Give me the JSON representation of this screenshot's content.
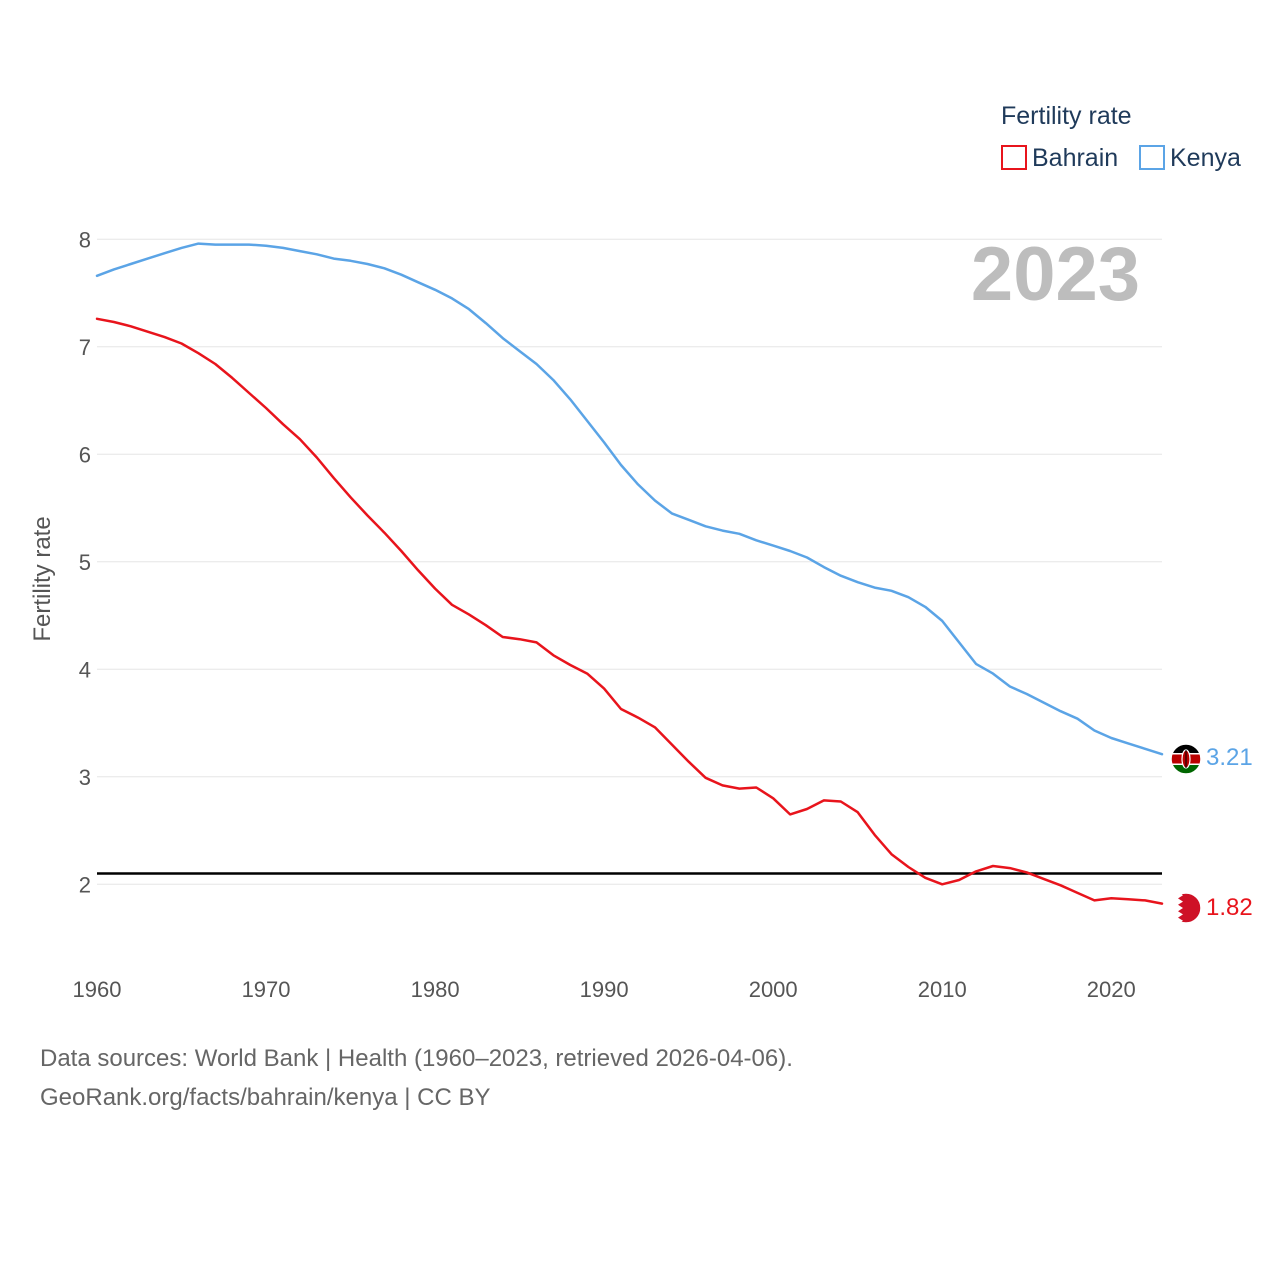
{
  "chart_data": {
    "type": "line",
    "title": "",
    "year_label": "2023",
    "ylabel": "Fertility rate",
    "xlabel": "",
    "xlim": [
      1960,
      2023
    ],
    "ylim": [
      1.5,
      8.3
    ],
    "x_ticks": [
      1960,
      1970,
      1980,
      1990,
      2000,
      2010,
      2020
    ],
    "y_ticks": [
      2,
      3,
      4,
      5,
      6,
      7,
      8
    ],
    "grid": true,
    "reference_line": {
      "value": 2.1,
      "color": "#000000"
    },
    "legend": {
      "title": "Fertility rate",
      "placement": "top-right"
    },
    "x": [
      1960,
      1961,
      1962,
      1963,
      1964,
      1965,
      1966,
      1967,
      1968,
      1969,
      1970,
      1971,
      1972,
      1973,
      1974,
      1975,
      1976,
      1977,
      1978,
      1979,
      1980,
      1981,
      1982,
      1983,
      1984,
      1985,
      1986,
      1987,
      1988,
      1989,
      1990,
      1991,
      1992,
      1993,
      1994,
      1995,
      1996,
      1997,
      1998,
      1999,
      2000,
      2001,
      2002,
      2003,
      2004,
      2005,
      2006,
      2007,
      2008,
      2009,
      2010,
      2011,
      2012,
      2013,
      2014,
      2015,
      2016,
      2017,
      2018,
      2019,
      2020,
      2021,
      2022,
      2023
    ],
    "series": [
      {
        "name": "Bahrain",
        "color": "#e8141c",
        "flag": "bahrain-flag-icon",
        "end_label": "1.82",
        "values": [
          7.26,
          7.23,
          7.19,
          7.14,
          7.09,
          7.03,
          6.94,
          6.84,
          6.71,
          6.57,
          6.43,
          6.28,
          6.14,
          5.97,
          5.78,
          5.6,
          5.43,
          5.27,
          5.1,
          4.92,
          4.75,
          4.6,
          4.51,
          4.41,
          4.3,
          4.28,
          4.25,
          4.13,
          4.04,
          3.96,
          3.82,
          3.63,
          3.55,
          3.46,
          3.3,
          3.14,
          2.99,
          2.92,
          2.89,
          2.9,
          2.8,
          2.65,
          2.7,
          2.78,
          2.77,
          2.67,
          2.46,
          2.28,
          2.16,
          2.06,
          2.0,
          2.04,
          2.12,
          2.17,
          2.15,
          2.11,
          2.05,
          1.99,
          1.92,
          1.85,
          1.87,
          1.86,
          1.85,
          1.82
        ]
      },
      {
        "name": "Kenya",
        "color": "#5ba4e6",
        "flag": "kenya-flag-icon",
        "end_label": "3.21",
        "values": [
          7.66,
          7.72,
          7.77,
          7.82,
          7.87,
          7.92,
          7.96,
          7.95,
          7.95,
          7.95,
          7.94,
          7.92,
          7.89,
          7.86,
          7.82,
          7.8,
          7.77,
          7.73,
          7.67,
          7.6,
          7.53,
          7.45,
          7.35,
          7.22,
          7.08,
          6.96,
          6.84,
          6.69,
          6.51,
          6.31,
          6.11,
          5.9,
          5.72,
          5.57,
          5.45,
          5.39,
          5.33,
          5.29,
          5.26,
          5.2,
          5.15,
          5.1,
          5.04,
          4.95,
          4.87,
          4.81,
          4.76,
          4.73,
          4.67,
          4.58,
          4.45,
          4.25,
          4.05,
          3.96,
          3.84,
          3.77,
          3.69,
          3.61,
          3.54,
          3.43,
          3.36,
          3.31,
          3.26,
          3.21
        ]
      }
    ]
  },
  "source": {
    "line1": "Data sources: World Bank | Health (1960–2023, retrieved 2026-04-06).",
    "line2": "GeoRank.org/facts/bahrain/kenya | CC BY"
  }
}
